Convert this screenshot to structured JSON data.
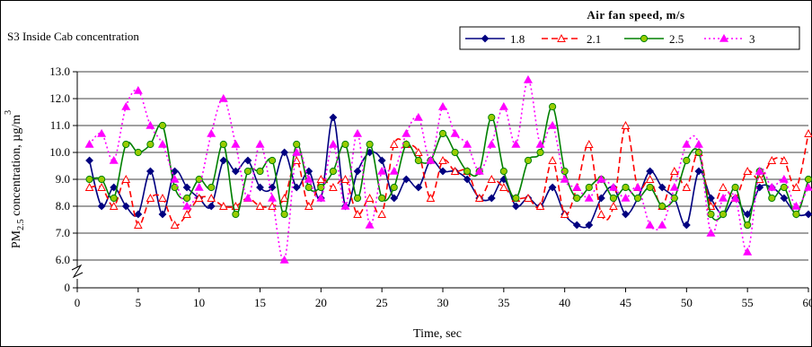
{
  "chart_data": {
    "type": "line",
    "title": "S3 Inside Cab concentration",
    "legend_title": "Air fan speed, m/s",
    "xlabel": "Time, sec",
    "ylabel": "PM2.5 concentration, µg/m3",
    "xlim": [
      0,
      60
    ],
    "ylim": [
      0,
      13
    ],
    "y_axis_break_between": [
      0,
      6
    ],
    "x_ticks": [
      0,
      5,
      10,
      15,
      20,
      25,
      30,
      35,
      40,
      45,
      50,
      55,
      60
    ],
    "y_ticks": [
      "13.0",
      "12.0",
      "11.0",
      "10.0",
      "9.0",
      "8.0",
      "7.0",
      "6.0",
      "0"
    ],
    "grid": true,
    "legend_position": "top-right",
    "series": [
      {
        "name": "1.8",
        "color": "#000080",
        "line_style": "solid",
        "marker": "diamond",
        "x": [
          1,
          2,
          3,
          4,
          5,
          6,
          7,
          8,
          9,
          10,
          11,
          12,
          13,
          14,
          15,
          16,
          17,
          18,
          19,
          20,
          21,
          22,
          23,
          24,
          25,
          26,
          27,
          28,
          29,
          30,
          31,
          32,
          33,
          34,
          35,
          36,
          37,
          38,
          39,
          40,
          41,
          42,
          43,
          44,
          45,
          46,
          47,
          48,
          49,
          50,
          51,
          52,
          53,
          54,
          55,
          56,
          57,
          58,
          59,
          60
        ],
        "y": [
          9.7,
          8.0,
          8.7,
          8.0,
          7.7,
          9.3,
          7.7,
          9.3,
          8.7,
          8.3,
          8.0,
          9.7,
          9.3,
          9.7,
          8.7,
          8.7,
          10.0,
          8.7,
          9.3,
          8.3,
          11.3,
          8.0,
          9.3,
          10.0,
          9.7,
          8.3,
          9.0,
          8.7,
          9.7,
          9.3,
          9.3,
          9.0,
          8.3,
          8.3,
          9.0,
          8.0,
          8.3,
          8.0,
          8.7,
          7.7,
          7.3,
          7.3,
          8.3,
          8.7,
          7.7,
          8.3,
          9.3,
          8.7,
          8.3,
          7.3,
          9.3,
          8.3,
          7.7,
          8.3,
          7.7,
          8.7,
          8.7,
          8.3,
          7.7,
          7.7
        ]
      },
      {
        "name": "2.1",
        "color": "#ff0000",
        "line_style": "dashed",
        "marker": "triangle-open",
        "x": [
          1,
          2,
          3,
          4,
          5,
          6,
          7,
          8,
          9,
          10,
          11,
          12,
          13,
          14,
          15,
          16,
          17,
          18,
          19,
          20,
          21,
          22,
          23,
          24,
          25,
          26,
          27,
          28,
          29,
          30,
          31,
          32,
          33,
          34,
          35,
          36,
          37,
          38,
          39,
          40,
          41,
          42,
          43,
          44,
          45,
          46,
          47,
          48,
          49,
          50,
          51,
          52,
          53,
          54,
          55,
          56,
          57,
          58,
          59,
          60
        ],
        "y": [
          8.7,
          8.7,
          8.0,
          9.0,
          7.3,
          8.3,
          8.3,
          7.3,
          7.7,
          8.3,
          8.3,
          8.0,
          8.0,
          8.3,
          8.0,
          8.0,
          8.3,
          9.7,
          8.0,
          9.0,
          8.7,
          9.0,
          7.7,
          8.3,
          7.7,
          10.3,
          10.3,
          10.0,
          8.3,
          9.7,
          9.3,
          9.3,
          8.3,
          9.0,
          8.7,
          8.3,
          8.3,
          8.0,
          9.7,
          7.7,
          8.7,
          10.3,
          7.7,
          8.0,
          11.0,
          8.7,
          9.0,
          8.0,
          9.3,
          8.7,
          10.0,
          8.0,
          8.7,
          8.3,
          9.3,
          9.0,
          9.7,
          9.7,
          8.7,
          10.7
        ]
      },
      {
        "name": "2.5",
        "color": "#008000",
        "line_style": "solid",
        "marker": "circle",
        "x": [
          1,
          2,
          3,
          4,
          5,
          6,
          7,
          8,
          9,
          10,
          11,
          12,
          13,
          14,
          15,
          16,
          17,
          18,
          19,
          20,
          21,
          22,
          23,
          24,
          25,
          26,
          27,
          28,
          29,
          30,
          31,
          32,
          33,
          34,
          35,
          36,
          37,
          38,
          39,
          40,
          41,
          42,
          43,
          44,
          45,
          46,
          47,
          48,
          49,
          50,
          51,
          52,
          53,
          54,
          55,
          56,
          57,
          58,
          59,
          60
        ],
        "y": [
          9.0,
          9.0,
          8.3,
          10.3,
          10.0,
          10.3,
          11.0,
          8.7,
          8.3,
          9.0,
          8.7,
          10.3,
          7.7,
          9.3,
          9.3,
          9.7,
          7.7,
          10.3,
          8.7,
          8.7,
          9.3,
          10.3,
          8.3,
          10.3,
          8.3,
          8.7,
          10.3,
          9.7,
          9.7,
          10.7,
          10.0,
          9.3,
          9.3,
          11.3,
          9.3,
          8.3,
          9.7,
          10.0,
          11.7,
          9.3,
          8.3,
          8.7,
          9.0,
          8.3,
          8.7,
          8.3,
          8.7,
          8.0,
          8.3,
          9.7,
          10.0,
          7.7,
          7.7,
          8.7,
          7.3,
          9.3,
          8.3,
          8.7,
          7.7,
          9.0
        ]
      },
      {
        "name": "3",
        "color": "#ff00ff",
        "line_style": "dotted",
        "marker": "triangle",
        "x": [
          1,
          2,
          3,
          4,
          5,
          6,
          7,
          8,
          9,
          10,
          11,
          12,
          13,
          14,
          15,
          16,
          17,
          18,
          19,
          20,
          21,
          22,
          23,
          24,
          25,
          26,
          27,
          28,
          29,
          30,
          31,
          32,
          33,
          34,
          35,
          36,
          37,
          38,
          39,
          40,
          41,
          42,
          43,
          44,
          45,
          46,
          47,
          48,
          49,
          50,
          51,
          52,
          53,
          54,
          55,
          56,
          57,
          58,
          59,
          60
        ],
        "y": [
          10.3,
          10.7,
          9.7,
          11.7,
          12.3,
          11.0,
          10.3,
          9.0,
          8.0,
          8.7,
          10.7,
          12.0,
          10.3,
          8.3,
          10.3,
          8.3,
          6.0,
          10.0,
          9.0,
          8.3,
          10.3,
          8.0,
          10.7,
          7.3,
          9.3,
          9.3,
          10.7,
          11.3,
          9.7,
          11.7,
          10.7,
          10.3,
          9.3,
          10.3,
          11.7,
          10.3,
          12.7,
          10.3,
          11.0,
          9.0,
          8.7,
          8.3,
          9.0,
          8.7,
          8.3,
          8.7,
          7.3,
          7.3,
          8.7,
          10.3,
          10.3,
          7.0,
          8.3,
          8.3,
          6.3,
          9.3,
          8.7,
          9.0,
          8.0,
          8.7
        ]
      }
    ]
  }
}
